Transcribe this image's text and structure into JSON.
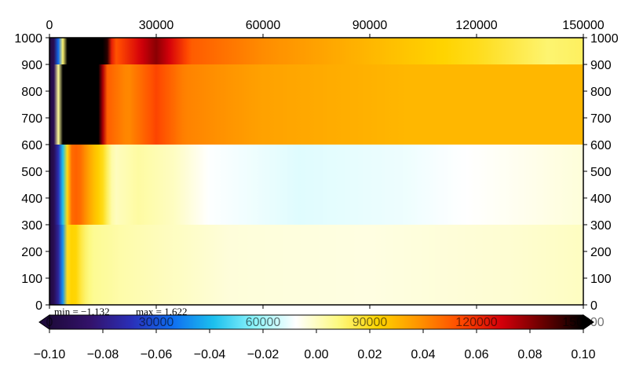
{
  "chart_data": {
    "type": "heatmap",
    "title": "",
    "xlabel": "",
    "ylabel": "",
    "xlim": [
      0,
      150000
    ],
    "ylim": [
      0,
      1000
    ],
    "x_ticks": [
      0,
      30000,
      60000,
      90000,
      120000,
      150000
    ],
    "x_tick_labels": [
      "0",
      "30000",
      "60000",
      "90000",
      "120000",
      "150000"
    ],
    "y_ticks": [
      0,
      100,
      200,
      300,
      400,
      500,
      600,
      700,
      800,
      900,
      1000
    ],
    "y_tick_labels": [
      "0",
      "100",
      "200",
      "300",
      "400",
      "500",
      "600",
      "700",
      "800",
      "900",
      "1000"
    ],
    "layers": [
      {
        "y_range": [
          0,
          300
        ],
        "profile": [
          [
            0,
            -0.1
          ],
          [
            1500,
            -0.09
          ],
          [
            3500,
            -0.06
          ],
          [
            5000,
            0.02
          ],
          [
            7000,
            0.025
          ],
          [
            9500,
            0.012
          ],
          [
            12000,
            0.006
          ],
          [
            20000,
            0.003
          ],
          [
            30000,
            0.001
          ],
          [
            50000,
            -0.003
          ],
          [
            90000,
            -0.004
          ],
          [
            130000,
            -0.002
          ],
          [
            150000,
            0.0
          ]
        ]
      },
      {
        "y_range": [
          300,
          600
        ],
        "profile": [
          [
            0,
            -0.1
          ],
          [
            1500,
            -0.09
          ],
          [
            3500,
            -0.05
          ],
          [
            5500,
            0.045
          ],
          [
            8000,
            0.05
          ],
          [
            12000,
            0.03
          ],
          [
            15000,
            0.02
          ],
          [
            18000,
            0.0
          ],
          [
            25000,
            0.004
          ],
          [
            35000,
            0.0
          ],
          [
            45000,
            -0.008
          ],
          [
            70000,
            -0.012
          ],
          [
            100000,
            -0.01
          ],
          [
            130000,
            -0.006
          ],
          [
            150000,
            -0.003
          ]
        ]
      },
      {
        "y_range": [
          600,
          900
        ],
        "profile": [
          [
            0,
            -0.1
          ],
          [
            1500,
            -0.09
          ],
          [
            3500,
            0.1
          ],
          [
            14000,
            0.1
          ],
          [
            16000,
            0.05
          ],
          [
            22000,
            0.04
          ],
          [
            30000,
            0.055
          ],
          [
            38000,
            0.042
          ],
          [
            60000,
            0.035
          ],
          [
            100000,
            0.03
          ],
          [
            150000,
            0.03
          ]
        ]
      },
      {
        "y_range": [
          900,
          1000
        ],
        "profile": [
          [
            0,
            -0.1
          ],
          [
            1500,
            -0.09
          ],
          [
            3500,
            -0.02
          ],
          [
            4500,
            0.1
          ],
          [
            16000,
            0.1
          ],
          [
            18000,
            0.05
          ],
          [
            26000,
            0.07
          ],
          [
            30000,
            0.08
          ],
          [
            40000,
            0.05
          ],
          [
            60000,
            0.04
          ],
          [
            90000,
            0.03
          ],
          [
            120000,
            0.02
          ],
          [
            140000,
            0.01
          ],
          [
            150000,
            0.012
          ]
        ]
      }
    ],
    "colorbar": {
      "min": -0.1,
      "max": 0.1,
      "ticks": [
        -0.1,
        -0.08,
        -0.06,
        -0.04,
        -0.02,
        0.0,
        0.02,
        0.04,
        0.06,
        0.08,
        0.1
      ],
      "tick_labels": [
        "−0.10",
        "−0.08",
        "−0.06",
        "−0.04",
        "−0.02",
        "0.00",
        "0.02",
        "0.04",
        "0.06",
        "0.08",
        "0.10"
      ],
      "color_stops": [
        "#1e0a3c",
        "#33126b",
        "#2a2fb8",
        "#0f6ef0",
        "#1cc0ee",
        "#8ef5fb",
        "#ffffff",
        "#fdfa84",
        "#ffd400",
        "#ff9300",
        "#ff4a00",
        "#d4000a",
        "#6a0000",
        "#000000"
      ]
    },
    "stats": {
      "min_text": "min = −1.132",
      "max_text": "max = 1.622"
    }
  }
}
